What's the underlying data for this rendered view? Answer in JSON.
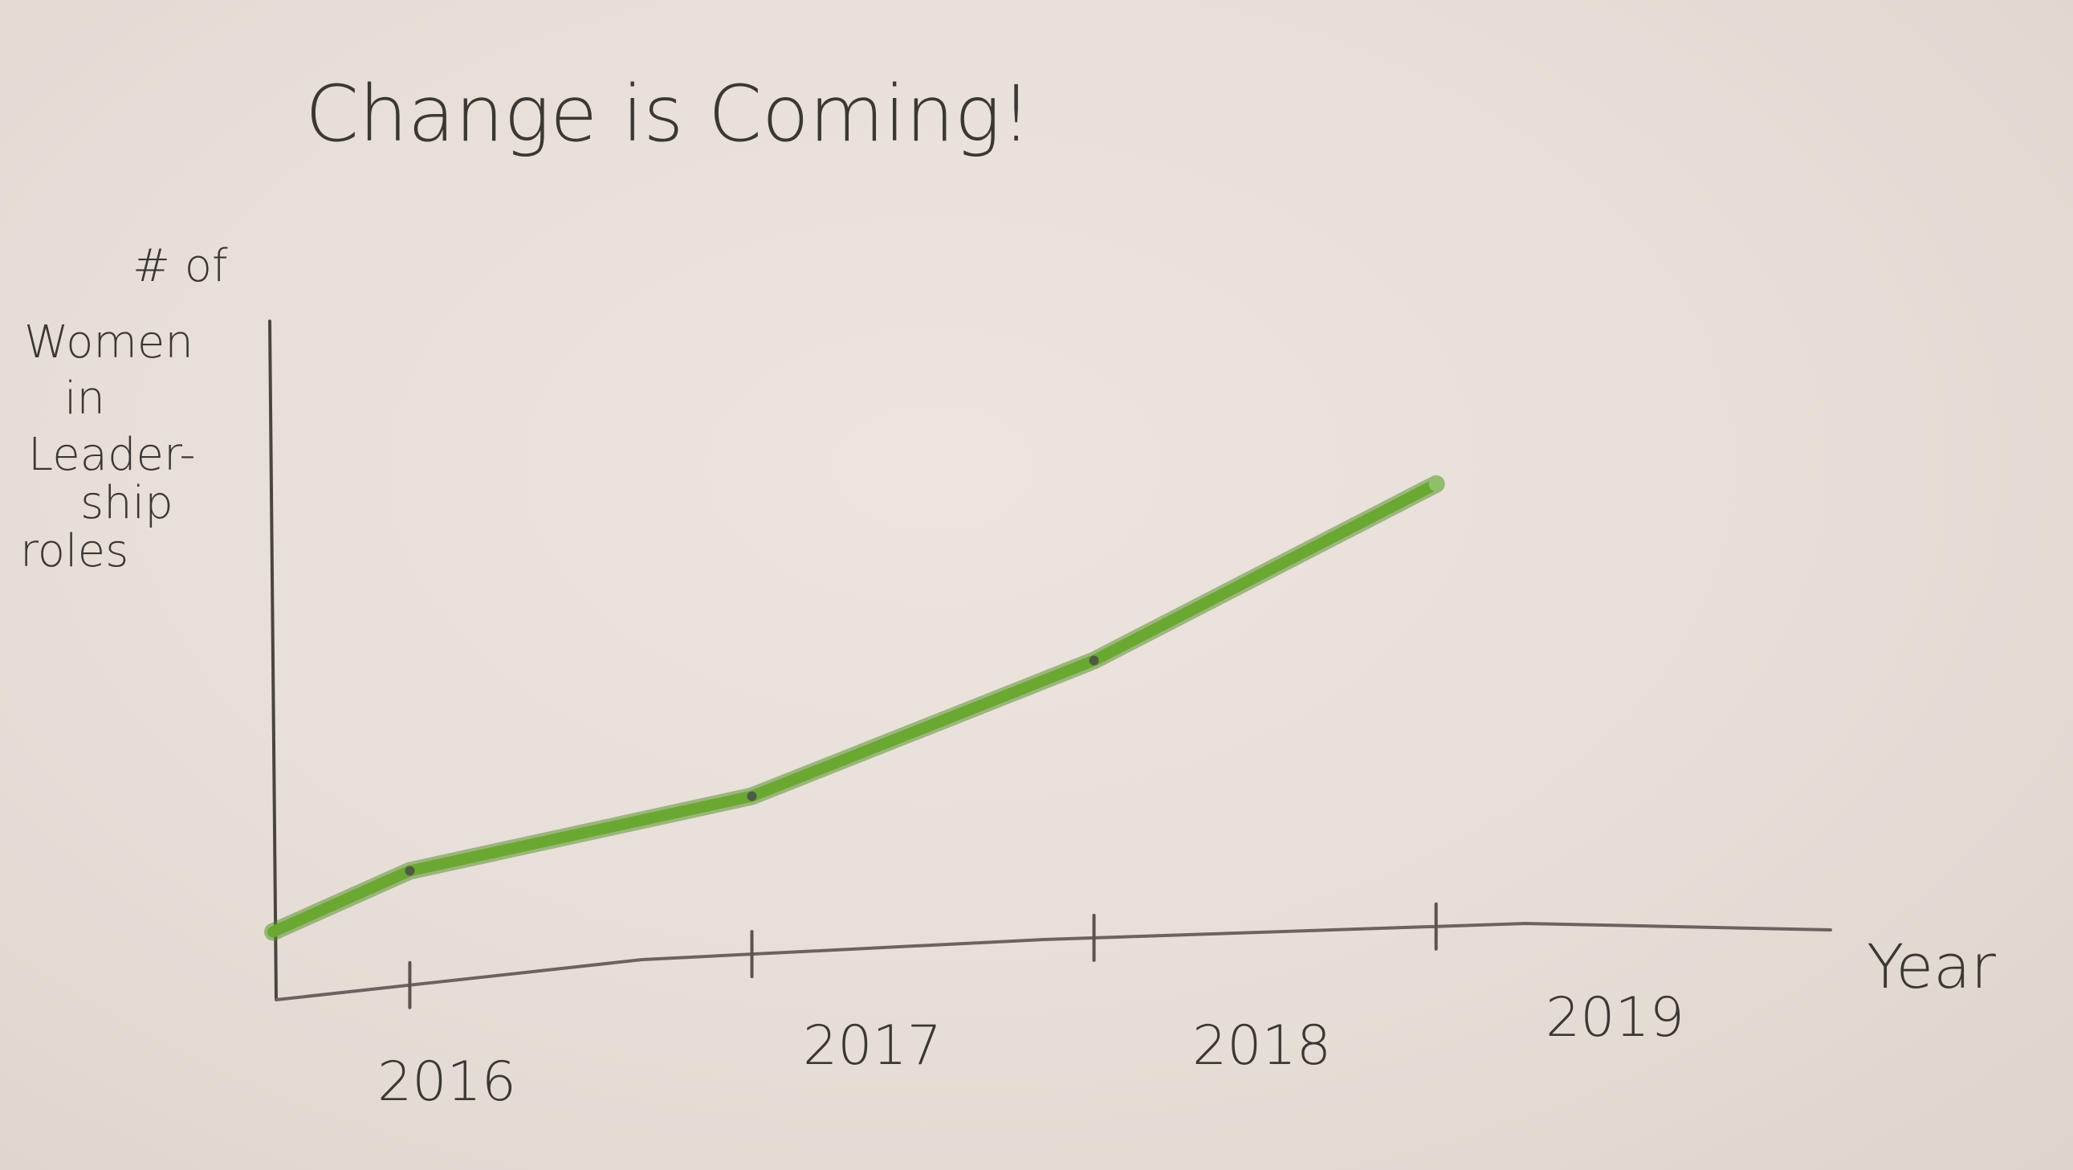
{
  "chart_data": {
    "type": "line",
    "title": "Change is Coming!",
    "ylabel_lines": [
      "# of",
      "Women",
      "in",
      "Leader-",
      "ship",
      "roles"
    ],
    "xlabel": "Year",
    "x_ticks": [
      "2016",
      "2017",
      "2018",
      "2019"
    ],
    "x": [
      2015.6,
      2016,
      2017,
      2018,
      2019
    ],
    "values": [
      1.0,
      1.9,
      3.0,
      5.0,
      7.6
    ],
    "ylim": [
      0,
      10
    ],
    "xlim": [
      2015.6,
      2020.2
    ],
    "grid": false,
    "line_color": "#6aa832"
  }
}
